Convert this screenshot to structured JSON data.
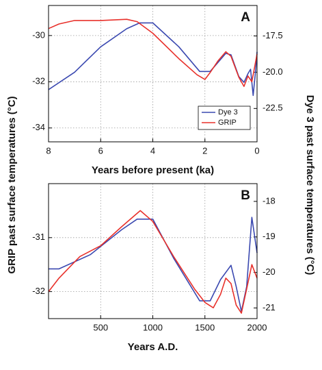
{
  "y_label": "GRIP past surface temperatures (°C)",
  "y2_label": "Dye 3 past surface temperatures (°C)",
  "chart_data": [
    {
      "type": "line",
      "label": "A",
      "xlabel": "Years before present (ka)",
      "xlim": [
        8,
        0
      ],
      "xticks": [
        8,
        6,
        4,
        2,
        0
      ],
      "ylim": [
        -34.6,
        -28.7
      ],
      "yticks": [
        -30,
        -32,
        -34
      ],
      "y2lim": [
        -24.8,
        -15.4
      ],
      "y2ticks": [
        -17.5,
        {
          "value": -20,
          "label": "-20.0"
        },
        -22.5
      ],
      "grid": true,
      "legend": "lower-right",
      "series": [
        {
          "name": "Dye 3",
          "color": "#3a48b0",
          "axis": "y2",
          "x": [
            8,
            7,
            6,
            5,
            4.5,
            4,
            3,
            2.2,
            1.8,
            1.2,
            1,
            0.7,
            0.5,
            0.35,
            0.25,
            0.15,
            0.05,
            0
          ],
          "values": [
            -21.2,
            -20.0,
            -18.25,
            -17.0,
            -16.6,
            -16.6,
            -18.25,
            -19.95,
            -19.95,
            -18.7,
            -18.8,
            -20.3,
            -20.7,
            -20.1,
            -19.8,
            -21.6,
            -19.8,
            -18.6
          ]
        },
        {
          "name": "GRIP",
          "color": "#e8302a",
          "x": [
            8,
            7.6,
            7,
            6,
            5,
            4.6,
            4,
            3,
            2.3,
            2,
            1.8,
            1.5,
            1.2,
            1,
            0.7,
            0.5,
            0.35,
            0.2,
            0.1,
            0
          ],
          "values": [
            -29.7,
            -29.5,
            -29.35,
            -29.35,
            -29.3,
            -29.4,
            -29.9,
            -31.0,
            -31.7,
            -31.9,
            -31.6,
            -31.1,
            -30.7,
            -30.9,
            -31.8,
            -32.2,
            -31.75,
            -32.0,
            -31.4,
            -30.8
          ]
        }
      ]
    },
    {
      "type": "line",
      "label": "B",
      "xlabel": "Years A.D.",
      "xlim": [
        0,
        2000
      ],
      "xticks": [
        500,
        1000,
        1500,
        2000
      ],
      "ylim": [
        -32.5,
        -30
      ],
      "yticks": [
        -31,
        -32
      ],
      "y2lim": [
        -21.3,
        -17.5
      ],
      "y2ticks": [
        -18,
        -19,
        -20,
        -21
      ],
      "grid": true,
      "series": [
        {
          "name": "Dye 3",
          "color": "#3a48b0",
          "axis": "y2",
          "x": [
            0,
            100,
            400,
            700,
            850,
            1000,
            1200,
            1450,
            1550,
            1650,
            1750,
            1800,
            1850,
            1900,
            1950,
            2000
          ],
          "values": [
            -19.9,
            -19.9,
            -19.5,
            -18.8,
            -18.5,
            -18.5,
            -19.6,
            -20.8,
            -20.8,
            -20.2,
            -19.8,
            -20.4,
            -21.1,
            -20.4,
            -18.45,
            -19.45
          ]
        },
        {
          "name": "GRIP",
          "color": "#e8302a",
          "x": [
            0,
            100,
            300,
            500,
            700,
            880,
            1000,
            1200,
            1400,
            1500,
            1580,
            1650,
            1700,
            1750,
            1800,
            1850,
            1900,
            1950,
            2000
          ],
          "values": [
            -32.0,
            -31.75,
            -31.35,
            -31.15,
            -30.8,
            -30.5,
            -30.7,
            -31.35,
            -31.95,
            -32.2,
            -32.3,
            -32.05,
            -31.75,
            -31.85,
            -32.25,
            -32.4,
            -31.95,
            -31.5,
            -31.75
          ]
        }
      ]
    }
  ]
}
